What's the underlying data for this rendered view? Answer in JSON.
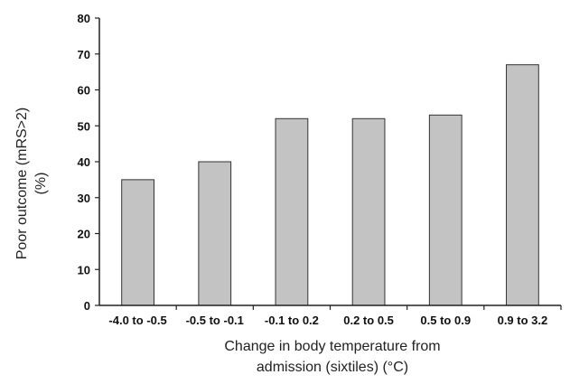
{
  "chart_data": {
    "type": "bar",
    "categories": [
      "-4.0 to -0.5",
      "-0.5 to -0.1",
      "-0.1 to 0.2",
      "0.2 to 0.5",
      "0.5 to 0.9",
      "0.9 to 3.2"
    ],
    "values": [
      35,
      40,
      52,
      52,
      53,
      67
    ],
    "xlabel": [
      "Change in body temperature from",
      "admission (sixtiles) (°C)"
    ],
    "ylabel": [
      "Poor outcome (mRS>2)",
      "(%)"
    ],
    "ylim": [
      0,
      80
    ],
    "yticks": [
      0,
      10,
      20,
      30,
      40,
      50,
      60,
      70,
      80
    ],
    "grid": false,
    "colors": {
      "bar_fill": "#c3c3c3",
      "bar_stroke": "#333333"
    }
  }
}
